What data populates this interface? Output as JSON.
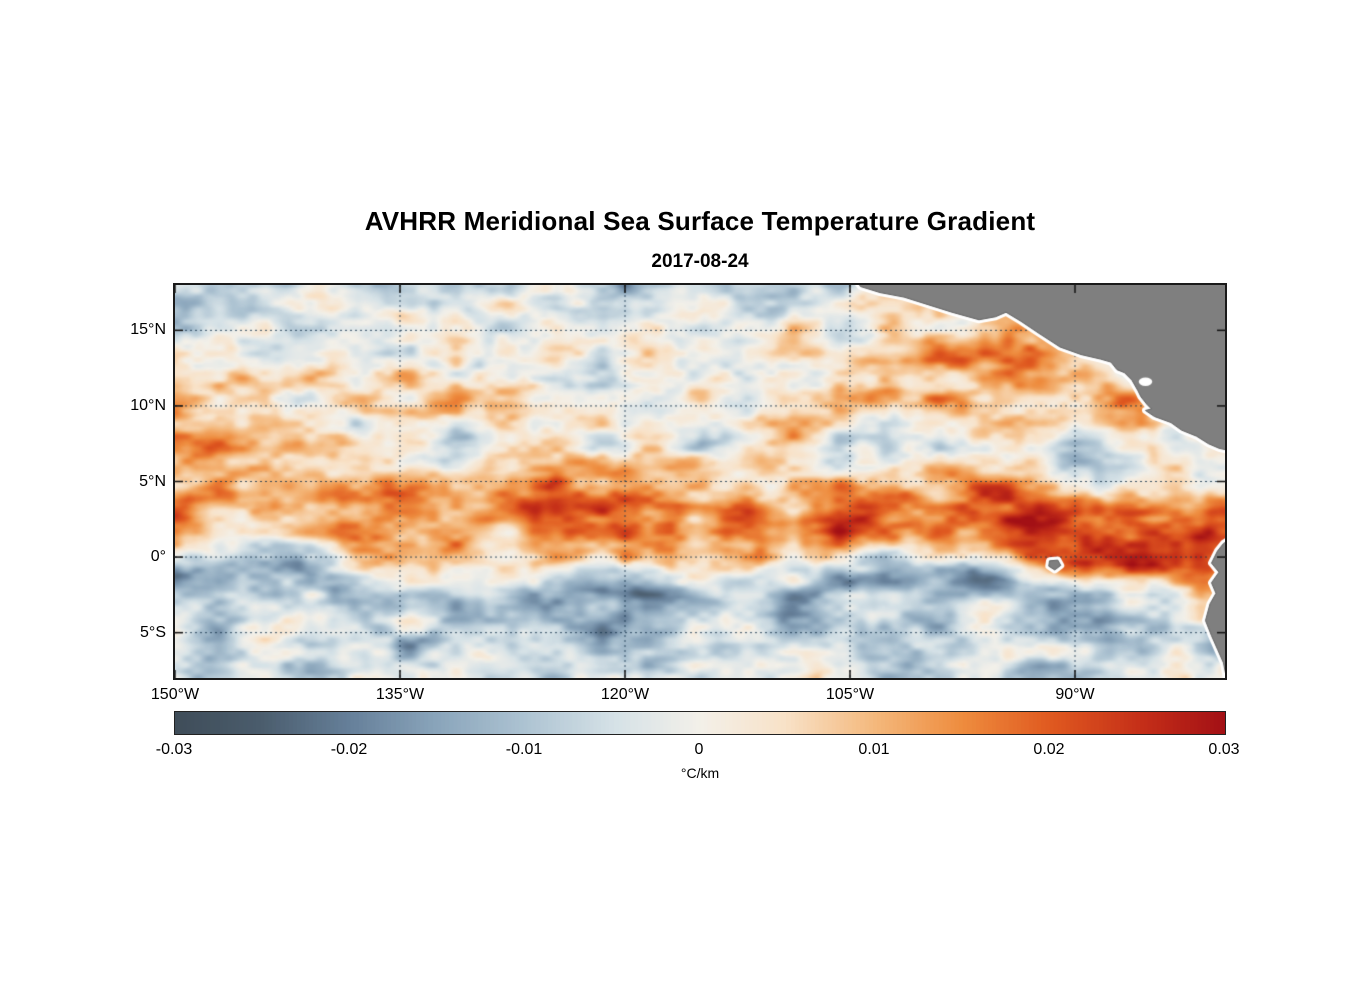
{
  "chart_data": {
    "type": "heatmap",
    "title": "AVHRR Meridional Sea Surface Temperature Gradient",
    "subtitle": "2017-08-24",
    "x_axis": {
      "range": [
        -150,
        -80
      ],
      "ticks": [
        {
          "lon": -150,
          "label": "150°W"
        },
        {
          "lon": -135,
          "label": "135°W"
        },
        {
          "lon": -120,
          "label": "120°W"
        },
        {
          "lon": -105,
          "label": "105°W"
        },
        {
          "lon": -90,
          "label": "90°W"
        }
      ]
    },
    "y_axis": {
      "range": [
        -8,
        18
      ],
      "ticks": [
        {
          "lat": 15,
          "label": "15°N"
        },
        {
          "lat": 10,
          "label": "10°N"
        },
        {
          "lat": 5,
          "label": "5°N"
        },
        {
          "lat": 0,
          "label": "0°"
        },
        {
          "lat": -5,
          "label": "5°S"
        }
      ]
    },
    "grid_on": true,
    "colorbar": {
      "min": -0.03,
      "max": 0.03,
      "label": "°C/km",
      "ticks": [
        {
          "value": -0.03,
          "label": "-0.03"
        },
        {
          "value": -0.02,
          "label": "-0.02"
        },
        {
          "value": -0.01,
          "label": "-0.01"
        },
        {
          "value": 0,
          "label": "0"
        },
        {
          "value": 0.01,
          "label": "0.01"
        },
        {
          "value": 0.02,
          "label": "0.02"
        },
        {
          "value": 0.03,
          "label": "0.03"
        }
      ],
      "colormap": [
        {
          "t": 0.0,
          "c": "#3f4d59"
        },
        {
          "t": 0.08,
          "c": "#4a5c6c"
        },
        {
          "t": 0.167,
          "c": "#66809a"
        },
        {
          "t": 0.25,
          "c": "#8aa5bb"
        },
        {
          "t": 0.333,
          "c": "#adc3d2"
        },
        {
          "t": 0.42,
          "c": "#d6e2e7"
        },
        {
          "t": 0.5,
          "c": "#f3f0e9"
        },
        {
          "t": 0.58,
          "c": "#f8e2c8"
        },
        {
          "t": 0.667,
          "c": "#f4b87c"
        },
        {
          "t": 0.75,
          "c": "#ee8c3e"
        },
        {
          "t": 0.833,
          "c": "#e05a20"
        },
        {
          "t": 0.92,
          "c": "#c52f18"
        },
        {
          "t": 1.0,
          "c": "#a31015"
        }
      ]
    },
    "field_units": "°C/km",
    "field_grid": {
      "comment": "Coarse estimate of the meridional SST gradient field read from the image; values in units of 0.001 °C/km; rows north(18N) to south(8S), cols 150W to 80W; null = land.",
      "lons": [
        -150,
        -145,
        -140,
        -135,
        -130,
        -125,
        -120,
        -115,
        -110,
        -105,
        -100,
        -95,
        -90,
        -85,
        -80
      ],
      "lats": [
        18,
        16,
        14,
        12,
        10,
        8,
        6,
        4,
        2,
        0,
        -2,
        -4,
        -6,
        -8
      ],
      "scale": 0.001,
      "values": [
        [
          -8,
          -12,
          -6,
          -10,
          -4,
          -6,
          -10,
          -4,
          -6,
          -4,
          null,
          null,
          null,
          null,
          null
        ],
        [
          -12,
          -5,
          0,
          8,
          -2,
          2,
          -6,
          4,
          -2,
          6,
          2,
          null,
          null,
          null,
          null
        ],
        [
          -6,
          -4,
          2,
          0,
          -3,
          3,
          2,
          -2,
          4,
          2,
          8,
          10,
          null,
          null,
          null
        ],
        [
          2,
          -2,
          4,
          2,
          0,
          4,
          -4,
          2,
          6,
          10,
          12,
          12,
          10,
          null,
          null
        ],
        [
          10,
          6,
          2,
          4,
          6,
          2,
          -6,
          -2,
          4,
          8,
          6,
          4,
          12,
          10,
          null
        ],
        [
          4,
          2,
          -5,
          -3,
          -6,
          0,
          2,
          -4,
          2,
          0,
          4,
          2,
          -4,
          4,
          2
        ],
        [
          8,
          12,
          6,
          10,
          14,
          18,
          8,
          4,
          -4,
          4,
          2,
          -2,
          -4,
          2,
          -2
        ],
        [
          5,
          8,
          10,
          14,
          16,
          26,
          24,
          20,
          12,
          16,
          10,
          18,
          14,
          10,
          12
        ],
        [
          18,
          12,
          8,
          16,
          10,
          12,
          20,
          10,
          14,
          22,
          20,
          24,
          20,
          28,
          26
        ],
        [
          10,
          4,
          2,
          6,
          -2,
          4,
          2,
          0,
          4,
          6,
          8,
          14,
          18,
          26,
          22
        ],
        [
          -10,
          -16,
          -12,
          -8,
          -6,
          -18,
          -22,
          -12,
          -14,
          -10,
          -8,
          -14,
          -16,
          -12,
          18
        ],
        [
          -6,
          -8,
          -4,
          -10,
          -8,
          -6,
          -12,
          -6,
          -8,
          -4,
          -10,
          -6,
          -14,
          -8,
          6
        ],
        [
          -8,
          -4,
          -2,
          -6,
          -2,
          -4,
          -8,
          -2,
          -4,
          -6,
          -2,
          -8,
          -4,
          -10,
          -6
        ],
        [
          -4,
          -2,
          -4,
          -2,
          -6,
          -2,
          -4,
          -6,
          -2,
          -4,
          -6,
          -2,
          -8,
          -4,
          null
        ]
      ]
    },
    "land": {
      "color": "#7f7f7f",
      "coast_halo": "#ffffff",
      "outline": "#606060",
      "polygons": [
        {
          "name": "central-america-mexico",
          "pts": [
            [
              -104.8,
              18.6
            ],
            [
              -104.3,
              17.9
            ],
            [
              -103.0,
              17.5
            ],
            [
              -101.4,
              17.2
            ],
            [
              -99.8,
              16.7
            ],
            [
              -98.2,
              16.2
            ],
            [
              -96.4,
              15.7
            ],
            [
              -95.3,
              15.9
            ],
            [
              -94.6,
              16.2
            ],
            [
              -93.6,
              15.6
            ],
            [
              -92.4,
              14.8
            ],
            [
              -91.0,
              13.9
            ],
            [
              -89.6,
              13.4
            ],
            [
              -88.3,
              13.1
            ],
            [
              -87.6,
              12.9
            ],
            [
              -87.2,
              12.4
            ],
            [
              -86.7,
              12.2
            ],
            [
              -86.2,
              11.7
            ],
            [
              -85.8,
              11.0
            ],
            [
              -85.6,
              10.6
            ],
            [
              -85.2,
              10.1
            ],
            [
              -84.9,
              9.8
            ],
            [
              -85.3,
              9.7
            ],
            [
              -84.7,
              9.3
            ],
            [
              -83.6,
              8.9
            ],
            [
              -82.9,
              8.4
            ],
            [
              -81.9,
              8.0
            ],
            [
              -81.1,
              7.5
            ],
            [
              -80.4,
              7.2
            ],
            [
              -79.5,
              7.0
            ],
            [
              -79.5,
              18.6
            ]
          ]
        },
        {
          "name": "south-america",
          "pts": [
            [
              -79.5,
              1.3
            ],
            [
              -80.1,
              0.9
            ],
            [
              -80.5,
              0.4
            ],
            [
              -80.9,
              -0.4
            ],
            [
              -80.4,
              -1.0
            ],
            [
              -80.9,
              -1.7
            ],
            [
              -80.6,
              -2.4
            ],
            [
              -81.0,
              -3.1
            ],
            [
              -81.3,
              -4.2
            ],
            [
              -80.9,
              -5.2
            ],
            [
              -80.5,
              -6.1
            ],
            [
              -80.1,
              -7.0
            ],
            [
              -79.8,
              -8.6
            ],
            [
              -79.5,
              -8.6
            ]
          ]
        },
        {
          "name": "galapagos-islands",
          "pts": [
            [
              -91.7,
              -0.25
            ],
            [
              -91.15,
              -0.2
            ],
            [
              -90.95,
              -0.55
            ],
            [
              -91.35,
              -0.85
            ],
            [
              -91.75,
              -0.6
            ]
          ]
        }
      ],
      "lakes": [
        {
          "name": "lake-nicaragua",
          "lon": -85.3,
          "lat": 11.6,
          "rx": 0.45,
          "ry": 0.28
        }
      ]
    }
  }
}
